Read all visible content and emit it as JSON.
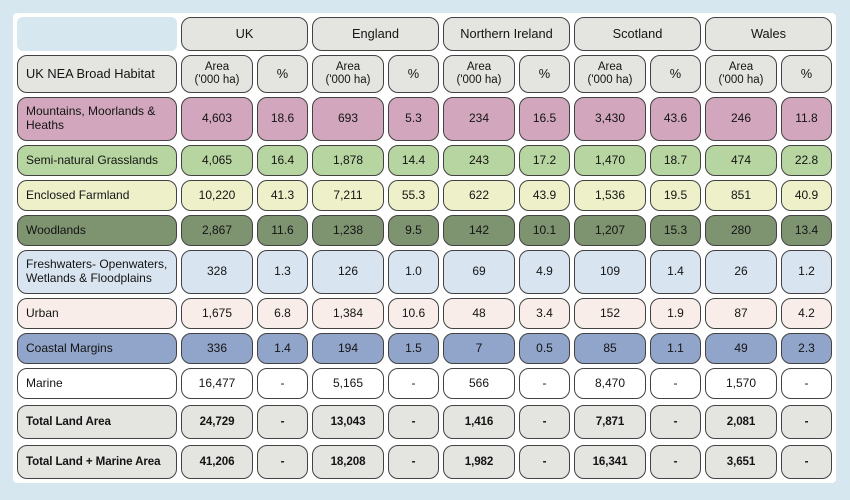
{
  "colors": {
    "page-bg": "#d6e7f0",
    "header-bg": "#e4e5e0",
    "border": "#424242"
  },
  "chart_data": {
    "type": "table",
    "corner_header": "UK NEA Broad Habitat",
    "region_headers": [
      "UK",
      "England",
      "Northern Ireland",
      "Scotland",
      "Wales"
    ],
    "sub_columns": [
      "Area ('000 ha)",
      "%"
    ],
    "subheader_area_line1": "Area",
    "subheader_area_line2": "('000 ha)",
    "subheader_pct": "%",
    "rows": [
      {
        "label": "Mountains, Moorlands & Heaths",
        "color": "#d2a6bd",
        "tall": true,
        "total": false,
        "values": [
          "4,603",
          "18.6",
          "693",
          "5.3",
          "234",
          "16.5",
          "3,430",
          "43.6",
          "246",
          "11.8"
        ]
      },
      {
        "label": "Semi-natural Grasslands",
        "color": "#b7d5a0",
        "tall": false,
        "total": false,
        "values": [
          "4,065",
          "16.4",
          "1,878",
          "14.4",
          "243",
          "17.2",
          "1,470",
          "18.7",
          "474",
          "22.8"
        ]
      },
      {
        "label": "Enclosed Farmland",
        "color": "#eef0ca",
        "tall": false,
        "total": false,
        "values": [
          "10,220",
          "41.3",
          "7,211",
          "55.3",
          "622",
          "43.9",
          "1,536",
          "19.5",
          "851",
          "40.9"
        ]
      },
      {
        "label": "Woodlands",
        "color": "#7e9370",
        "tall": false,
        "total": false,
        "values": [
          "2,867",
          "11.6",
          "1,238",
          "9.5",
          "142",
          "10.1",
          "1,207",
          "15.3",
          "280",
          "13.4"
        ]
      },
      {
        "label": "Freshwaters- Openwaters, Wetlands & Floodplains",
        "color": "#d8e4f0",
        "tall": true,
        "total": false,
        "values": [
          "328",
          "1.3",
          "126",
          "1.0",
          "69",
          "4.9",
          "109",
          "1.4",
          "26",
          "1.2"
        ]
      },
      {
        "label": "Urban",
        "color": "#f8ede8",
        "tall": false,
        "total": false,
        "values": [
          "1,675",
          "6.8",
          "1,384",
          "10.6",
          "48",
          "3.4",
          "152",
          "1.9",
          "87",
          "4.2"
        ]
      },
      {
        "label": "Coastal Margins",
        "color": "#91a4c9",
        "tall": false,
        "total": false,
        "values": [
          "336",
          "1.4",
          "194",
          "1.5",
          "7",
          "0.5",
          "85",
          "1.1",
          "49",
          "2.3"
        ]
      },
      {
        "label": "Marine",
        "color": "#ffffff",
        "tall": false,
        "total": false,
        "values": [
          "16,477",
          "-",
          "5,165",
          "-",
          "566",
          "-",
          "8,470",
          "-",
          "1,570",
          "-"
        ]
      },
      {
        "label": "Total Land Area",
        "color": "#e4e5e0",
        "tall": false,
        "total": true,
        "values": [
          "24,729",
          "-",
          "13,043",
          "-",
          "1,416",
          "-",
          "7,871",
          "-",
          "2,081",
          "-"
        ]
      },
      {
        "label": "Total Land + Marine Area",
        "color": "#e4e5e0",
        "tall": false,
        "total": true,
        "values": [
          "41,206",
          "-",
          "18,208",
          "-",
          "1,982",
          "-",
          "16,341",
          "-",
          "3,651",
          "-"
        ]
      }
    ]
  }
}
